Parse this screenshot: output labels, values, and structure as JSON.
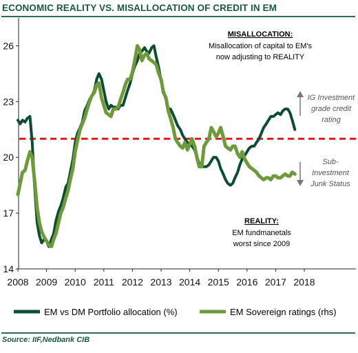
{
  "title": "ECONOMIC REALITY VS. MISALLOCATION OF CREDIT IN EM",
  "source": "Source: IIF,Nedbank CIB",
  "chart_data": {
    "type": "line",
    "xlim": [
      2008,
      2018.5
    ],
    "ylim": [
      14,
      27.5
    ],
    "yticks": [
      "14",
      "17",
      "20",
      "23",
      "26"
    ],
    "xticks": [
      "2008",
      "2009",
      "2010",
      "2011",
      "2012",
      "2013",
      "2014",
      "2015",
      "2016",
      "2017",
      "2018"
    ],
    "grid": false,
    "legend_position": "bottom",
    "threshold": {
      "value": 21,
      "color": "#e8151b",
      "style": "dashed"
    },
    "annotations": {
      "misallocation": {
        "heading": "MISALLOCATION:",
        "lines": [
          "Misallocation of capital to EM's",
          "now adjusting to REALITY"
        ]
      },
      "reality": {
        "heading": "REALITY:",
        "lines": [
          "EM fundmanetals",
          "worst since 2009"
        ]
      },
      "ig": [
        "IG Investment",
        "grade credit",
        "rating"
      ],
      "junk": [
        "Sub-",
        "Investment",
        "Junk Status"
      ]
    },
    "series": [
      {
        "name": "EM vs DM Portfolio allocation (%)",
        "color": "#0d4d33",
        "x": [
          2008.0,
          2008.08,
          2008.16,
          2008.25,
          2008.33,
          2008.42,
          2008.5,
          2008.58,
          2008.67,
          2008.75,
          2008.83,
          2008.92,
          2009.0,
          2009.08,
          2009.17,
          2009.25,
          2009.33,
          2009.42,
          2009.5,
          2009.58,
          2009.67,
          2009.75,
          2009.83,
          2009.92,
          2010.0,
          2010.08,
          2010.17,
          2010.25,
          2010.33,
          2010.42,
          2010.5,
          2010.58,
          2010.67,
          2010.75,
          2010.83,
          2010.92,
          2011.0,
          2011.08,
          2011.17,
          2011.25,
          2011.33,
          2011.42,
          2011.5,
          2011.58,
          2011.67,
          2011.75,
          2011.83,
          2011.92,
          2012.0,
          2012.08,
          2012.17,
          2012.25,
          2012.33,
          2012.42,
          2012.5,
          2012.58,
          2012.67,
          2012.75,
          2012.83,
          2012.92,
          2013.0,
          2013.08,
          2013.17,
          2013.25,
          2013.33,
          2013.42,
          2013.5,
          2013.58,
          2013.67,
          2013.75,
          2013.83,
          2013.92,
          2014.0,
          2014.08,
          2014.17,
          2014.25,
          2014.33,
          2014.42,
          2014.5,
          2014.58,
          2014.67,
          2014.75,
          2014.83,
          2014.92,
          2015.0,
          2015.08,
          2015.17,
          2015.25,
          2015.33,
          2015.42,
          2015.5,
          2015.58,
          2015.67,
          2015.75,
          2015.83,
          2015.92,
          2016.0,
          2016.08,
          2016.17,
          2016.25,
          2016.33,
          2016.42,
          2016.5,
          2016.58,
          2016.67,
          2016.75,
          2016.83,
          2016.92,
          2017.0,
          2017.08,
          2017.17,
          2017.25,
          2017.33,
          2017.42,
          2017.5,
          2017.58,
          2017.67
        ],
        "values": [
          22.0,
          21.8,
          22.0,
          21.9,
          22.1,
          22.2,
          20.8,
          18.5,
          16.5,
          15.8,
          15.4,
          15.6,
          15.5,
          15.2,
          15.6,
          15.9,
          16.6,
          17.1,
          17.4,
          17.8,
          18.4,
          18.6,
          19.2,
          19.9,
          20.8,
          21.3,
          21.6,
          21.9,
          22.5,
          22.8,
          23.1,
          23.3,
          23.6,
          24.2,
          24.5,
          24.2,
          23.6,
          23.0,
          22.6,
          22.8,
          22.7,
          22.7,
          22.6,
          22.8,
          22.8,
          23.2,
          23.6,
          24.0,
          24.5,
          24.9,
          25.2,
          25.6,
          25.7,
          25.9,
          25.7,
          25.6,
          25.9,
          26.0,
          25.4,
          24.8,
          24.1,
          23.6,
          23.1,
          22.6,
          22.6,
          22.3,
          22.0,
          21.7,
          21.5,
          21.2,
          21.0,
          20.8,
          20.7,
          20.6,
          20.4,
          20.0,
          19.7,
          19.5,
          19.5,
          19.5,
          19.6,
          19.8,
          20.0,
          20.0,
          19.8,
          19.4,
          19.1,
          18.8,
          18.6,
          18.5,
          18.6,
          18.9,
          19.2,
          19.6,
          19.9,
          20.1,
          20.3,
          20.5,
          20.6,
          20.6,
          20.8,
          21.0,
          21.3,
          21.6,
          21.8,
          22.0,
          22.2,
          22.2,
          22.3,
          22.4,
          22.3,
          22.5,
          22.6,
          22.6,
          22.4,
          22.0,
          21.5
        ]
      },
      {
        "name": "EM Sovereign ratings (rhs)",
        "color": "#6f9a3a",
        "x": [
          2008.0,
          2008.08,
          2008.16,
          2008.25,
          2008.33,
          2008.42,
          2008.5,
          2008.58,
          2008.67,
          2008.75,
          2008.83,
          2008.92,
          2009.0,
          2009.08,
          2009.17,
          2009.25,
          2009.33,
          2009.42,
          2009.5,
          2009.58,
          2009.67,
          2009.75,
          2009.83,
          2009.92,
          2010.0,
          2010.08,
          2010.17,
          2010.25,
          2010.33,
          2010.42,
          2010.5,
          2010.58,
          2010.67,
          2010.75,
          2010.83,
          2010.92,
          2011.0,
          2011.08,
          2011.17,
          2011.25,
          2011.33,
          2011.42,
          2011.5,
          2011.58,
          2011.67,
          2011.75,
          2011.83,
          2011.92,
          2012.0,
          2012.08,
          2012.17,
          2012.25,
          2012.33,
          2012.42,
          2012.5,
          2012.58,
          2012.67,
          2012.75,
          2012.83,
          2012.92,
          2013.0,
          2013.08,
          2013.17,
          2013.25,
          2013.33,
          2013.42,
          2013.5,
          2013.58,
          2013.67,
          2013.75,
          2013.83,
          2013.92,
          2014.0,
          2014.08,
          2014.17,
          2014.25,
          2014.33,
          2014.42,
          2014.5,
          2014.58,
          2014.67,
          2014.75,
          2014.83,
          2014.92,
          2015.0,
          2015.08,
          2015.17,
          2015.25,
          2015.33,
          2015.42,
          2015.5,
          2015.58,
          2015.67,
          2015.75,
          2015.83,
          2015.92,
          2016.0,
          2016.08,
          2016.17,
          2016.25,
          2016.33,
          2016.42,
          2016.5,
          2016.58,
          2016.67,
          2016.75,
          2016.83,
          2016.92,
          2017.0,
          2017.08,
          2017.17,
          2017.25,
          2017.33,
          2017.42,
          2017.5,
          2017.58,
          2017.67
        ],
        "values": [
          18.0,
          18.6,
          19.2,
          19.3,
          19.8,
          20.3,
          20.0,
          18.8,
          17.3,
          16.5,
          16.0,
          15.7,
          15.5,
          15.3,
          15.2,
          15.6,
          15.9,
          16.5,
          17.0,
          17.3,
          17.8,
          18.2,
          18.8,
          19.4,
          20.3,
          20.9,
          21.5,
          21.8,
          22.1,
          22.6,
          23.0,
          23.3,
          23.5,
          23.9,
          24.0,
          23.2,
          22.8,
          22.4,
          22.3,
          22.2,
          22.6,
          22.6,
          22.7,
          23.1,
          23.5,
          23.9,
          24.2,
          24.2,
          24.6,
          25.2,
          26.0,
          25.8,
          25.2,
          25.5,
          25.6,
          25.3,
          25.2,
          25.1,
          25.0,
          24.5,
          24.2,
          23.5,
          23.2,
          22.5,
          22.1,
          21.6,
          21.0,
          20.8,
          20.6,
          20.5,
          20.8,
          20.4,
          20.7,
          21.0,
          20.6,
          20.0,
          19.5,
          19.5,
          20.6,
          20.8,
          21.0,
          21.6,
          21.4,
          21.1,
          21.3,
          21.6,
          21.1,
          20.6,
          20.5,
          20.4,
          20.6,
          20.6,
          20.2,
          20.0,
          20.3,
          19.9,
          19.7,
          19.5,
          19.4,
          19.3,
          19.2,
          19.0,
          18.9,
          18.8,
          18.9,
          18.9,
          18.8,
          19.0,
          19.0,
          18.9,
          18.9,
          19.0,
          19.1,
          19.0,
          19.0,
          19.2,
          19.1
        ]
      }
    ]
  }
}
